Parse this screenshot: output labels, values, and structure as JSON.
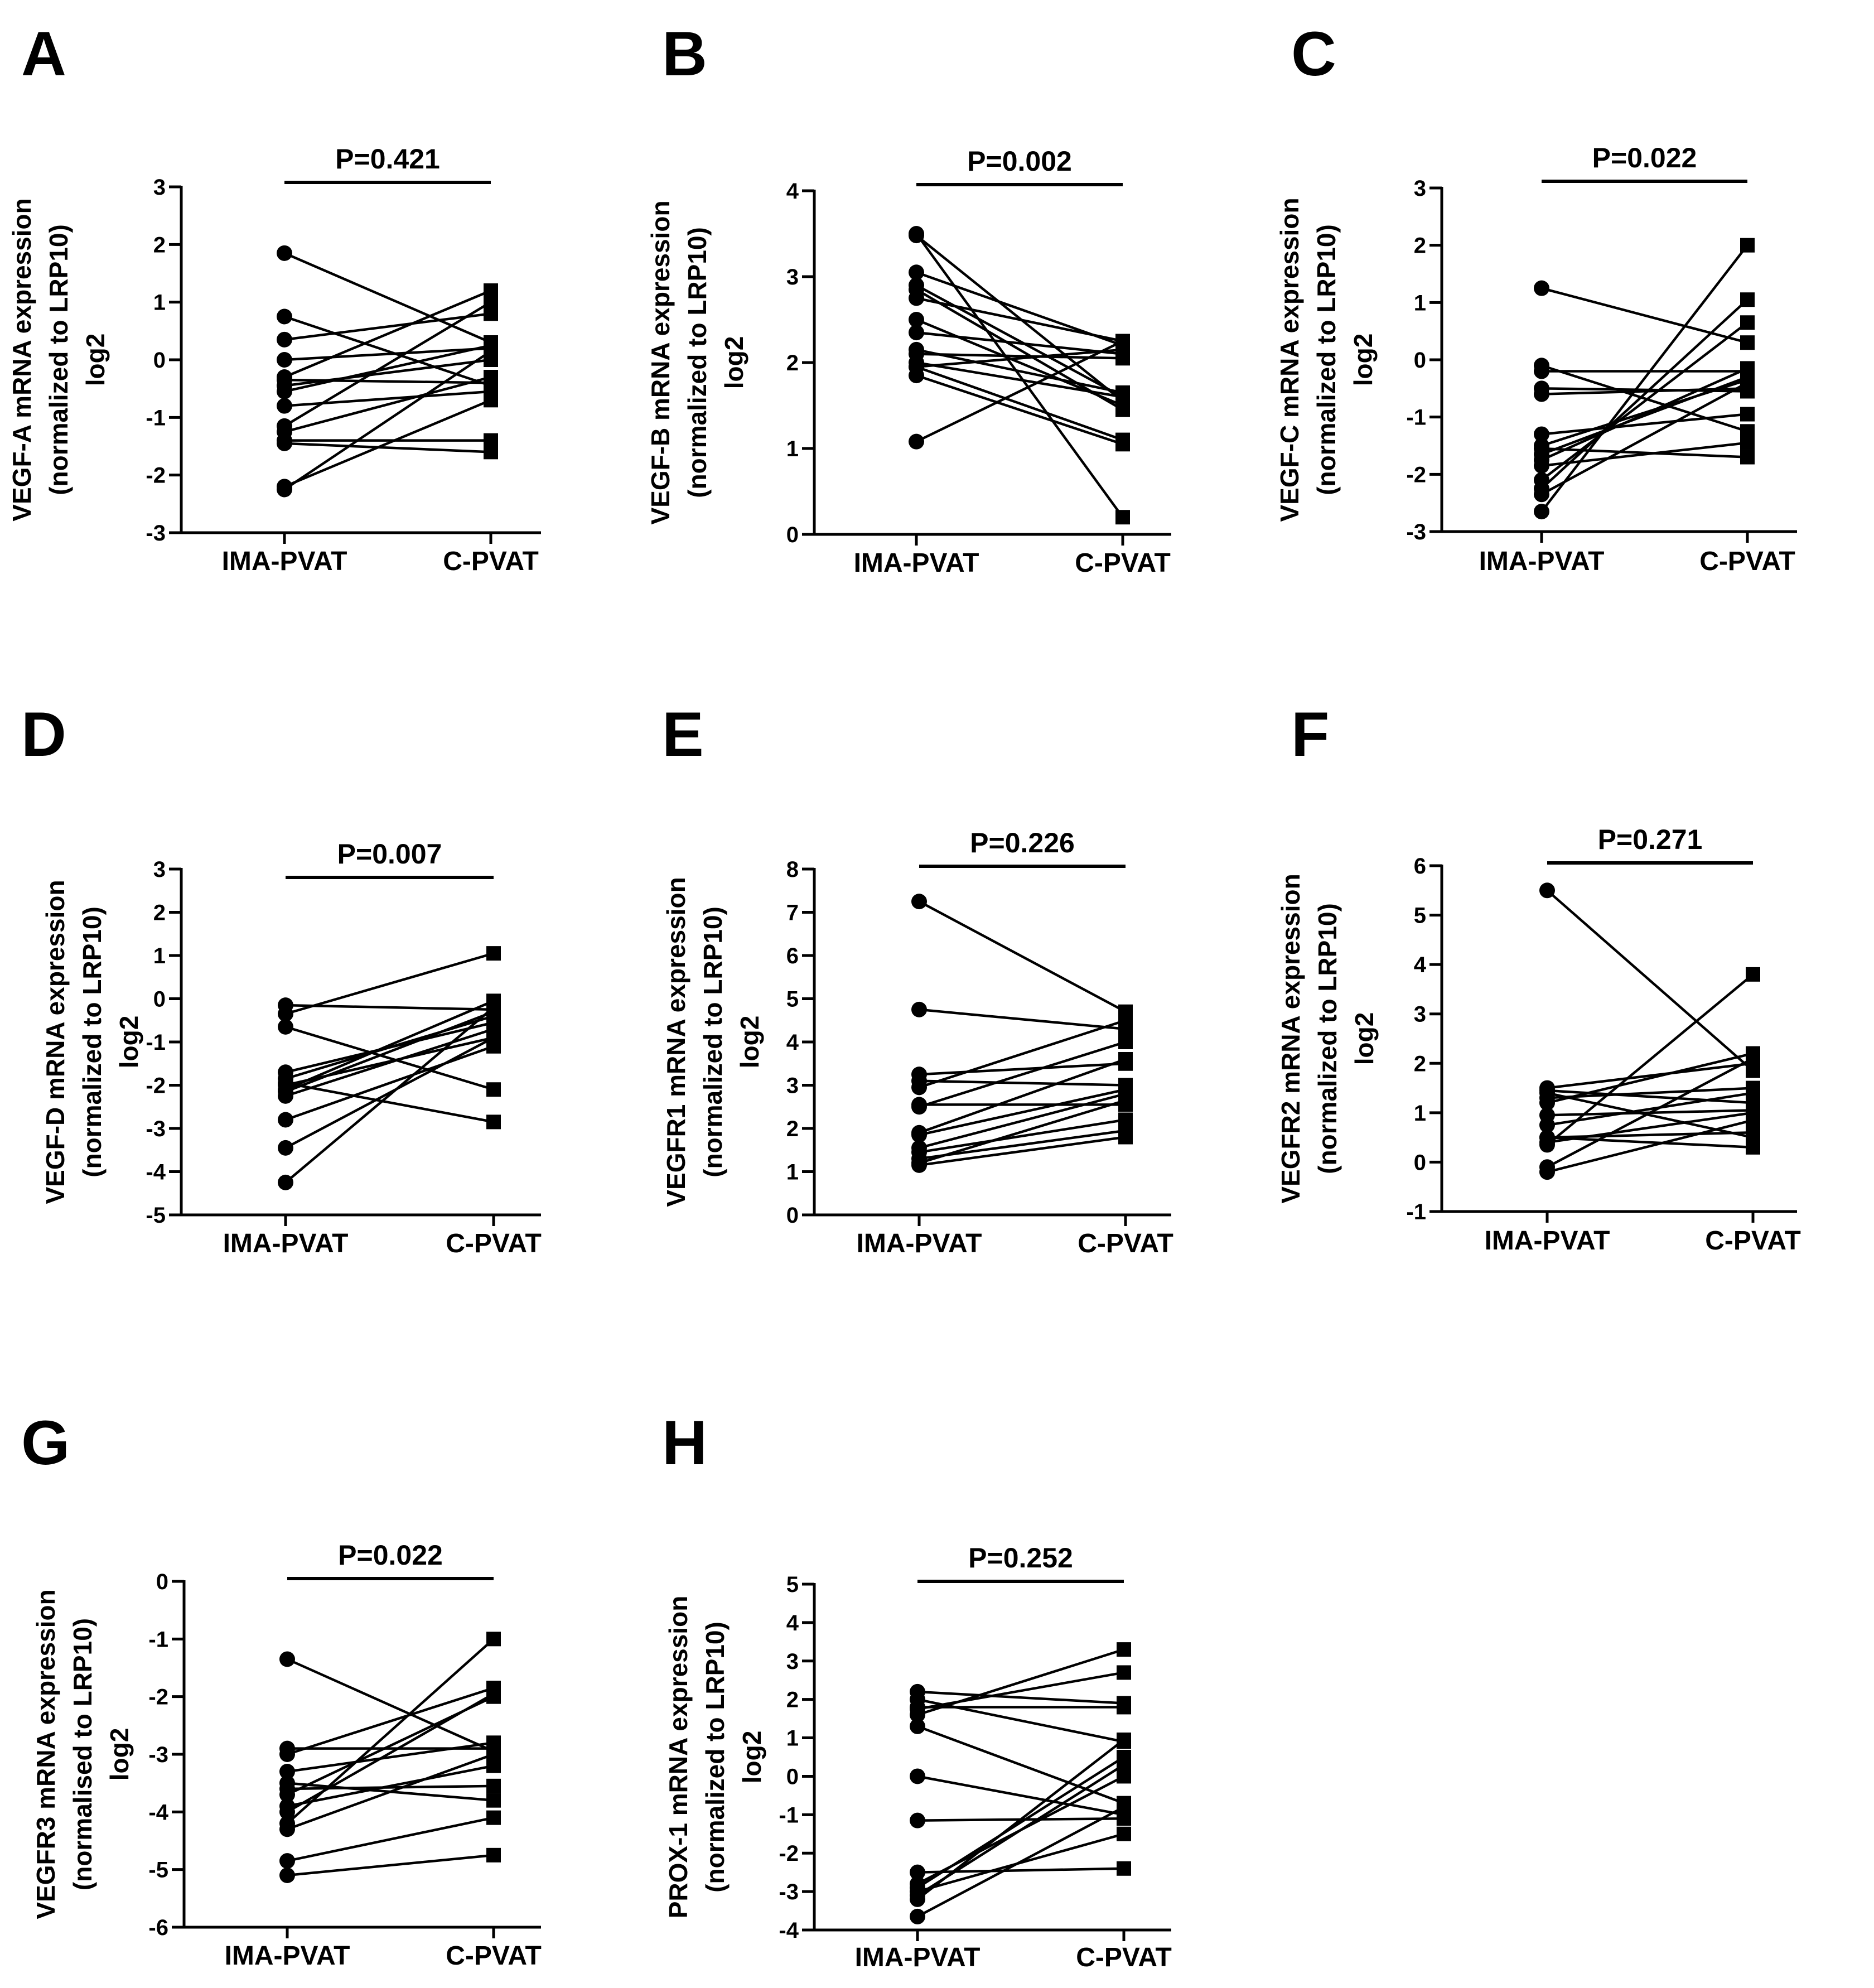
{
  "chart_data": [
    {
      "panel": "A",
      "type": "scatter",
      "categories": [
        "IMA-PVAT",
        "C-PVAT"
      ],
      "ylabel_lines": [
        "VEGF-A mRNA expression",
        "(normalized to LRP10)",
        "log2"
      ],
      "ylim": [
        -3,
        3
      ],
      "yticks": [
        -3,
        -2,
        -1,
        0,
        1,
        2,
        3
      ],
      "p_value": "P=0.421",
      "pairs": [
        [
          1.85,
          0.3
        ],
        [
          0.75,
          -0.45
        ],
        [
          0.35,
          0.8
        ],
        [
          0.0,
          0.2
        ],
        [
          -0.3,
          1.2
        ],
        [
          -0.35,
          -0.4
        ],
        [
          -0.45,
          0.0
        ],
        [
          -0.55,
          0.25
        ],
        [
          -0.8,
          -0.55
        ],
        [
          -1.15,
          1.0
        ],
        [
          -1.25,
          -0.3
        ],
        [
          -1.4,
          -1.4
        ],
        [
          -1.45,
          -1.6
        ],
        [
          -2.2,
          -0.7
        ],
        [
          -2.25,
          0.15
        ]
      ]
    },
    {
      "panel": "B",
      "type": "scatter",
      "categories": [
        "IMA-PVAT",
        "C-PVAT"
      ],
      "ylabel_lines": [
        "VEGF-B mRNA expression",
        "(normalized to LRP10)",
        "log2"
      ],
      "ylim": [
        0,
        4
      ],
      "yticks": [
        0,
        1,
        2,
        3,
        4
      ],
      "p_value": "P=0.002",
      "pairs": [
        [
          3.5,
          0.2
        ],
        [
          3.48,
          1.55
        ],
        [
          3.05,
          2.2
        ],
        [
          2.9,
          1.6
        ],
        [
          2.85,
          1.45
        ],
        [
          2.75,
          2.25
        ],
        [
          2.5,
          1.5
        ],
        [
          2.35,
          2.1
        ],
        [
          2.15,
          1.65
        ],
        [
          2.1,
          2.05
        ],
        [
          2.0,
          1.6
        ],
        [
          1.95,
          1.1
        ],
        [
          1.95,
          2.15
        ],
        [
          1.85,
          1.05
        ],
        [
          1.08,
          2.25
        ]
      ]
    },
    {
      "panel": "C",
      "type": "scatter",
      "categories": [
        "IMA-PVAT",
        "C-PVAT"
      ],
      "ylabel_lines": [
        "VEGF-C mRNA expression",
        "(normalized to LRP10)",
        "log2"
      ],
      "ylim": [
        -3,
        3
      ],
      "yticks": [
        -3,
        -2,
        -1,
        0,
        1,
        2,
        3
      ],
      "p_value": "P=0.022",
      "pairs": [
        [
          1.25,
          0.3
        ],
        [
          -0.1,
          -1.25
        ],
        [
          -0.2,
          -0.2
        ],
        [
          -0.5,
          -0.55
        ],
        [
          -0.6,
          -0.5
        ],
        [
          -1.3,
          -0.95
        ],
        [
          -1.5,
          -0.35
        ],
        [
          -1.55,
          -1.7
        ],
        [
          -1.65,
          -0.3
        ],
        [
          -1.75,
          -0.15
        ],
        [
          -1.85,
          -1.45
        ],
        [
          -2.1,
          0.65
        ],
        [
          -2.25,
          1.05
        ],
        [
          -2.35,
          -0.4
        ],
        [
          -2.65,
          2.0
        ]
      ]
    },
    {
      "panel": "D",
      "type": "scatter",
      "categories": [
        "IMA-PVAT",
        "C-PVAT"
      ],
      "ylabel_lines": [
        "VEGF-D mRNA expression",
        "(normalized to LRP10)",
        "log2"
      ],
      "ylim": [
        -5,
        3
      ],
      "yticks": [
        -5,
        -4,
        -3,
        -2,
        -1,
        0,
        1,
        2,
        3
      ],
      "p_value": "P=0.007",
      "pairs": [
        [
          -0.15,
          -0.25
        ],
        [
          -0.35,
          1.05
        ],
        [
          -0.65,
          -2.1
        ],
        [
          -1.7,
          -0.55
        ],
        [
          -1.85,
          -0.4
        ],
        [
          -1.95,
          -2.85
        ],
        [
          -2.0,
          -0.9
        ],
        [
          -2.1,
          -0.05
        ],
        [
          -2.15,
          -0.3
        ],
        [
          -2.25,
          -0.7
        ],
        [
          -2.8,
          -1.1
        ],
        [
          -3.45,
          -0.9
        ],
        [
          -4.25,
          -0.2
        ]
      ]
    },
    {
      "panel": "E",
      "type": "scatter",
      "categories": [
        "IMA-PVAT",
        "C-PVAT"
      ],
      "ylabel_lines": [
        "VEGFR1 mRNA expression",
        "(normalized to LRP10)",
        "log2"
      ],
      "ylim": [
        0,
        8
      ],
      "yticks": [
        0,
        1,
        2,
        3,
        4,
        5,
        6,
        7,
        8
      ],
      "p_value": "P=0.226",
      "pairs": [
        [
          7.25,
          4.7
        ],
        [
          4.75,
          4.3
        ],
        [
          3.25,
          3.5
        ],
        [
          3.1,
          3.0
        ],
        [
          2.95,
          4.5
        ],
        [
          2.55,
          2.55
        ],
        [
          2.5,
          4.0
        ],
        [
          1.9,
          3.6
        ],
        [
          1.85,
          2.9
        ],
        [
          1.55,
          2.8
        ],
        [
          1.45,
          2.2
        ],
        [
          1.3,
          1.95
        ],
        [
          1.2,
          2.65
        ],
        [
          1.15,
          1.8
        ]
      ]
    },
    {
      "panel": "F",
      "type": "scatter",
      "categories": [
        "IMA-PVAT",
        "C-PVAT"
      ],
      "ylabel_lines": [
        "VEGFR2 mRNA expression",
        "(normalized to LRP10)",
        "log2"
      ],
      "ylim": [
        -1,
        6
      ],
      "yticks": [
        -1,
        0,
        1,
        2,
        3,
        4,
        5,
        6
      ],
      "p_value": "P=0.271",
      "pairs": [
        [
          5.5,
          1.85
        ],
        [
          1.5,
          2.0
        ],
        [
          1.45,
          1.2
        ],
        [
          1.4,
          0.5
        ],
        [
          1.3,
          1.5
        ],
        [
          1.2,
          2.2
        ],
        [
          0.95,
          1.05
        ],
        [
          0.75,
          1.4
        ],
        [
          0.5,
          0.6
        ],
        [
          0.5,
          0.3
        ],
        [
          0.4,
          1.0
        ],
        [
          0.35,
          3.8
        ],
        [
          -0.1,
          2.1
        ],
        [
          -0.2,
          0.85
        ]
      ]
    },
    {
      "panel": "G",
      "type": "scatter",
      "categories": [
        "IMA-PVAT",
        "C-PVAT"
      ],
      "ylabel_lines": [
        "VEGFR3 mRNA expression",
        "(normalised to LRP10)",
        "log2"
      ],
      "ylim": [
        -6,
        0
      ],
      "yticks": [
        -6,
        -5,
        -4,
        -3,
        -2,
        -1,
        0
      ],
      "p_value": "P=0.022",
      "pairs": [
        [
          -1.35,
          -2.95
        ],
        [
          -2.9,
          -2.9
        ],
        [
          -3.0,
          -1.85
        ],
        [
          -3.3,
          -2.8
        ],
        [
          -3.5,
          -3.8
        ],
        [
          -3.6,
          -3.55
        ],
        [
          -3.7,
          -2.0
        ],
        [
          -3.9,
          -3.2
        ],
        [
          -4.0,
          -1.95
        ],
        [
          -4.2,
          -1.0
        ],
        [
          -4.3,
          -3.0
        ],
        [
          -4.85,
          -4.1
        ],
        [
          -5.1,
          -4.75
        ]
      ]
    },
    {
      "panel": "H",
      "type": "scatter",
      "categories": [
        "IMA-PVAT",
        "C-PVAT"
      ],
      "ylabel_lines": [
        "PROX-1 mRNA expression",
        "(normalized to LRP10)",
        "log2"
      ],
      "ylim": [
        -4,
        5
      ],
      "yticks": [
        -4,
        -3,
        -2,
        -1,
        0,
        1,
        2,
        3,
        4,
        5
      ],
      "p_value": "P=0.252",
      "pairs": [
        [
          2.2,
          1.9
        ],
        [
          2.0,
          0.9
        ],
        [
          1.8,
          1.8
        ],
        [
          1.75,
          2.7
        ],
        [
          1.6,
          3.3
        ],
        [
          1.3,
          -0.7
        ],
        [
          0.0,
          -1.0
        ],
        [
          -1.15,
          -1.1
        ],
        [
          -2.5,
          -2.4
        ],
        [
          -2.8,
          0.0
        ],
        [
          -2.9,
          0.5
        ],
        [
          -3.0,
          -1.5
        ],
        [
          -3.1,
          0.3
        ],
        [
          -3.2,
          0.95
        ],
        [
          -3.65,
          -0.8
        ]
      ]
    }
  ]
}
